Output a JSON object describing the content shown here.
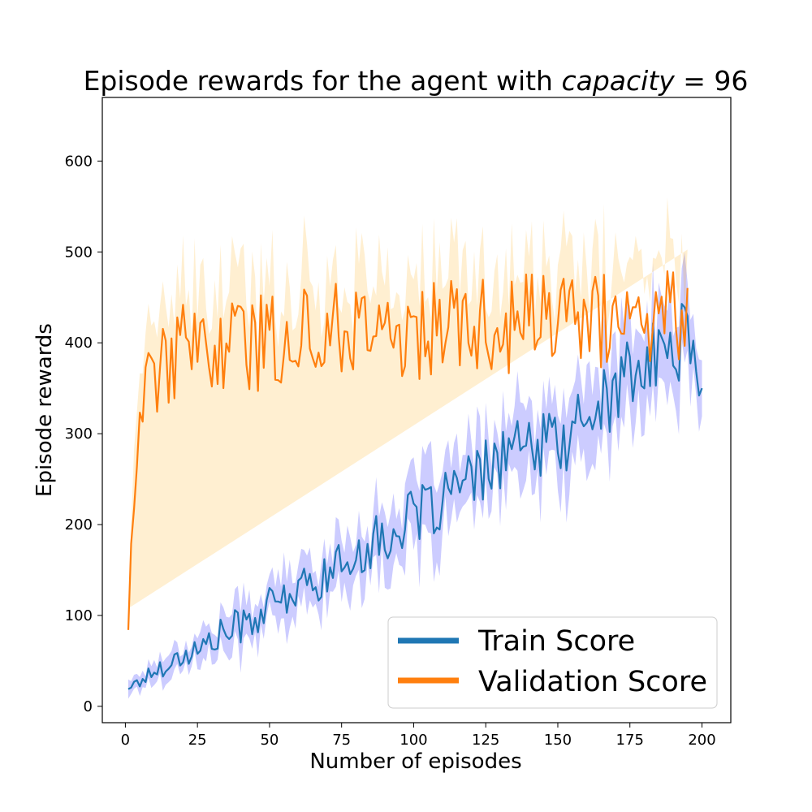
{
  "chart_data": {
    "type": "line",
    "title_prefix": "Episode rewards for the agent with ",
    "title_math": "capacity",
    "title_suffix": " = 96",
    "xlabel": "Number of episodes",
    "ylabel": "Episode rewards",
    "xlim": [
      -8,
      210
    ],
    "ylim": [
      -18,
      670
    ],
    "xticks": [
      0,
      25,
      50,
      75,
      100,
      125,
      150,
      175,
      200
    ],
    "yticks": [
      0,
      100,
      200,
      300,
      400,
      500,
      600
    ],
    "grid": false,
    "legend_position": "bottom-right",
    "series": [
      {
        "name": "Train Score",
        "color": "#1f77b4",
        "band_color": "#0000ff",
        "anchors": [
          [
            1,
            19
          ],
          [
            5,
            28
          ],
          [
            10,
            38
          ],
          [
            15,
            48
          ],
          [
            20,
            55
          ],
          [
            25,
            62
          ],
          [
            30,
            72
          ],
          [
            35,
            82
          ],
          [
            40,
            90
          ],
          [
            45,
            98
          ],
          [
            50,
            108
          ],
          [
            55,
            118
          ],
          [
            60,
            128
          ],
          [
            65,
            135
          ],
          [
            70,
            145
          ],
          [
            75,
            155
          ],
          [
            80,
            168
          ],
          [
            85,
            178
          ],
          [
            90,
            185
          ],
          [
            95,
            195
          ],
          [
            100,
            205
          ],
          [
            105,
            215
          ],
          [
            110,
            228
          ],
          [
            115,
            238
          ],
          [
            120,
            245
          ],
          [
            125,
            260
          ],
          [
            130,
            275
          ],
          [
            135,
            285
          ],
          [
            140,
            280
          ],
          [
            145,
            285
          ],
          [
            150,
            290
          ],
          [
            155,
            300
          ],
          [
            160,
            318
          ],
          [
            165,
            330
          ],
          [
            170,
            350
          ],
          [
            175,
            365
          ],
          [
            180,
            370
          ],
          [
            185,
            385
          ],
          [
            190,
            395
          ],
          [
            195,
            410
          ],
          [
            200,
            350
          ]
        ],
        "band_anchors": [
          10,
          12,
          14,
          16,
          18,
          20,
          22,
          25,
          28,
          30,
          30,
          32,
          32,
          32,
          32,
          35,
          35,
          38,
          40,
          42,
          45,
          45,
          45,
          45,
          45,
          45,
          48,
          48,
          48,
          50,
          50,
          50,
          55,
          55,
          55,
          55,
          58,
          60,
          60,
          62,
          30
        ]
      },
      {
        "name": "Validation Score",
        "color": "#ff7f0e",
        "band_color": "#ffa500",
        "anchors": [
          [
            1,
            84
          ],
          [
            3,
            260
          ],
          [
            5,
            320
          ],
          [
            8,
            345
          ],
          [
            10,
            365
          ],
          [
            15,
            385
          ],
          [
            20,
            390
          ],
          [
            25,
            385
          ],
          [
            30,
            395
          ],
          [
            35,
            400
          ],
          [
            40,
            405
          ],
          [
            45,
            395
          ],
          [
            50,
            410
          ],
          [
            55,
            400
          ],
          [
            60,
            410
          ],
          [
            65,
            412
          ],
          [
            70,
            415
          ],
          [
            75,
            418
          ],
          [
            80,
            420
          ],
          [
            85,
            415
          ],
          [
            90,
            410
          ],
          [
            95,
            405
          ],
          [
            100,
            410
          ],
          [
            105,
            415
          ],
          [
            110,
            418
          ],
          [
            115,
            420
          ],
          [
            120,
            425
          ],
          [
            125,
            415
          ],
          [
            130,
            420
          ],
          [
            135,
            418
          ],
          [
            140,
            425
          ],
          [
            145,
            430
          ],
          [
            150,
            425
          ],
          [
            155,
            420
          ],
          [
            160,
            430
          ],
          [
            165,
            425
          ],
          [
            170,
            420
          ],
          [
            175,
            425
          ],
          [
            180,
            430
          ],
          [
            185,
            435
          ],
          [
            190,
            435
          ],
          [
            195,
            440
          ],
          [
            200,
            517
          ]
        ],
        "band_anchors": [
          20,
          60,
          60,
          65,
          70,
          70,
          70,
          70,
          70,
          70,
          70,
          70,
          70,
          70,
          70,
          70,
          70,
          70,
          70,
          70,
          70,
          70,
          70,
          70,
          70,
          70,
          70,
          70,
          70,
          70,
          70,
          70,
          70,
          70,
          70,
          70,
          70,
          70,
          70,
          70,
          70,
          80
        ]
      }
    ]
  }
}
